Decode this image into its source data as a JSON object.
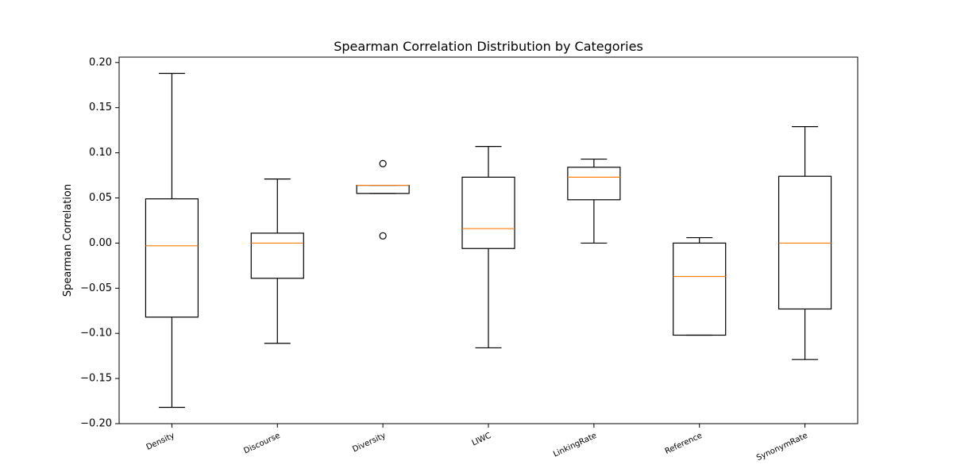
{
  "chart_data": {
    "type": "box",
    "title": "Spearman Correlation Distribution by Categories",
    "xlabel": "",
    "ylabel": "Spearman Correlation",
    "ylim": [
      -0.2,
      0.206
    ],
    "yticks": [
      -0.2,
      -0.15,
      -0.1,
      -0.05,
      0.0,
      0.05,
      0.1,
      0.15,
      0.2
    ],
    "ytick_labels": [
      "−0.20",
      "−0.15",
      "−0.10",
      "−0.05",
      "0.00",
      "0.05",
      "0.10",
      "0.15",
      "0.20"
    ],
    "categories": [
      "Density",
      "Discourse",
      "Diversity",
      "LIWC",
      "LinkingRate",
      "Reference",
      "SynonymRate"
    ],
    "boxes": [
      {
        "whislo": -0.182,
        "q1": -0.082,
        "med": -0.003,
        "q3": 0.049,
        "whishi": 0.188,
        "fliers": []
      },
      {
        "whislo": -0.111,
        "q1": -0.039,
        "med": 0.0,
        "q3": 0.011,
        "whishi": 0.071,
        "fliers": []
      },
      {
        "whislo": 0.055,
        "q1": 0.055,
        "med": 0.064,
        "q3": 0.064,
        "whishi": 0.064,
        "fliers": [
          0.088,
          0.008
        ]
      },
      {
        "whislo": -0.116,
        "q1": -0.006,
        "med": 0.016,
        "q3": 0.073,
        "whishi": 0.107,
        "fliers": []
      },
      {
        "whislo": 0.0,
        "q1": 0.048,
        "med": 0.073,
        "q3": 0.084,
        "whishi": 0.093,
        "fliers": []
      },
      {
        "whislo": -0.102,
        "q1": -0.102,
        "med": -0.037,
        "q3": 0.0,
        "whishi": 0.006,
        "fliers": []
      },
      {
        "whislo": -0.129,
        "q1": -0.073,
        "med": 0.0,
        "q3": 0.074,
        "whishi": 0.129,
        "fliers": []
      }
    ],
    "grid": false,
    "colors": {
      "box": "#000000",
      "median": "#ff7f0e"
    }
  }
}
